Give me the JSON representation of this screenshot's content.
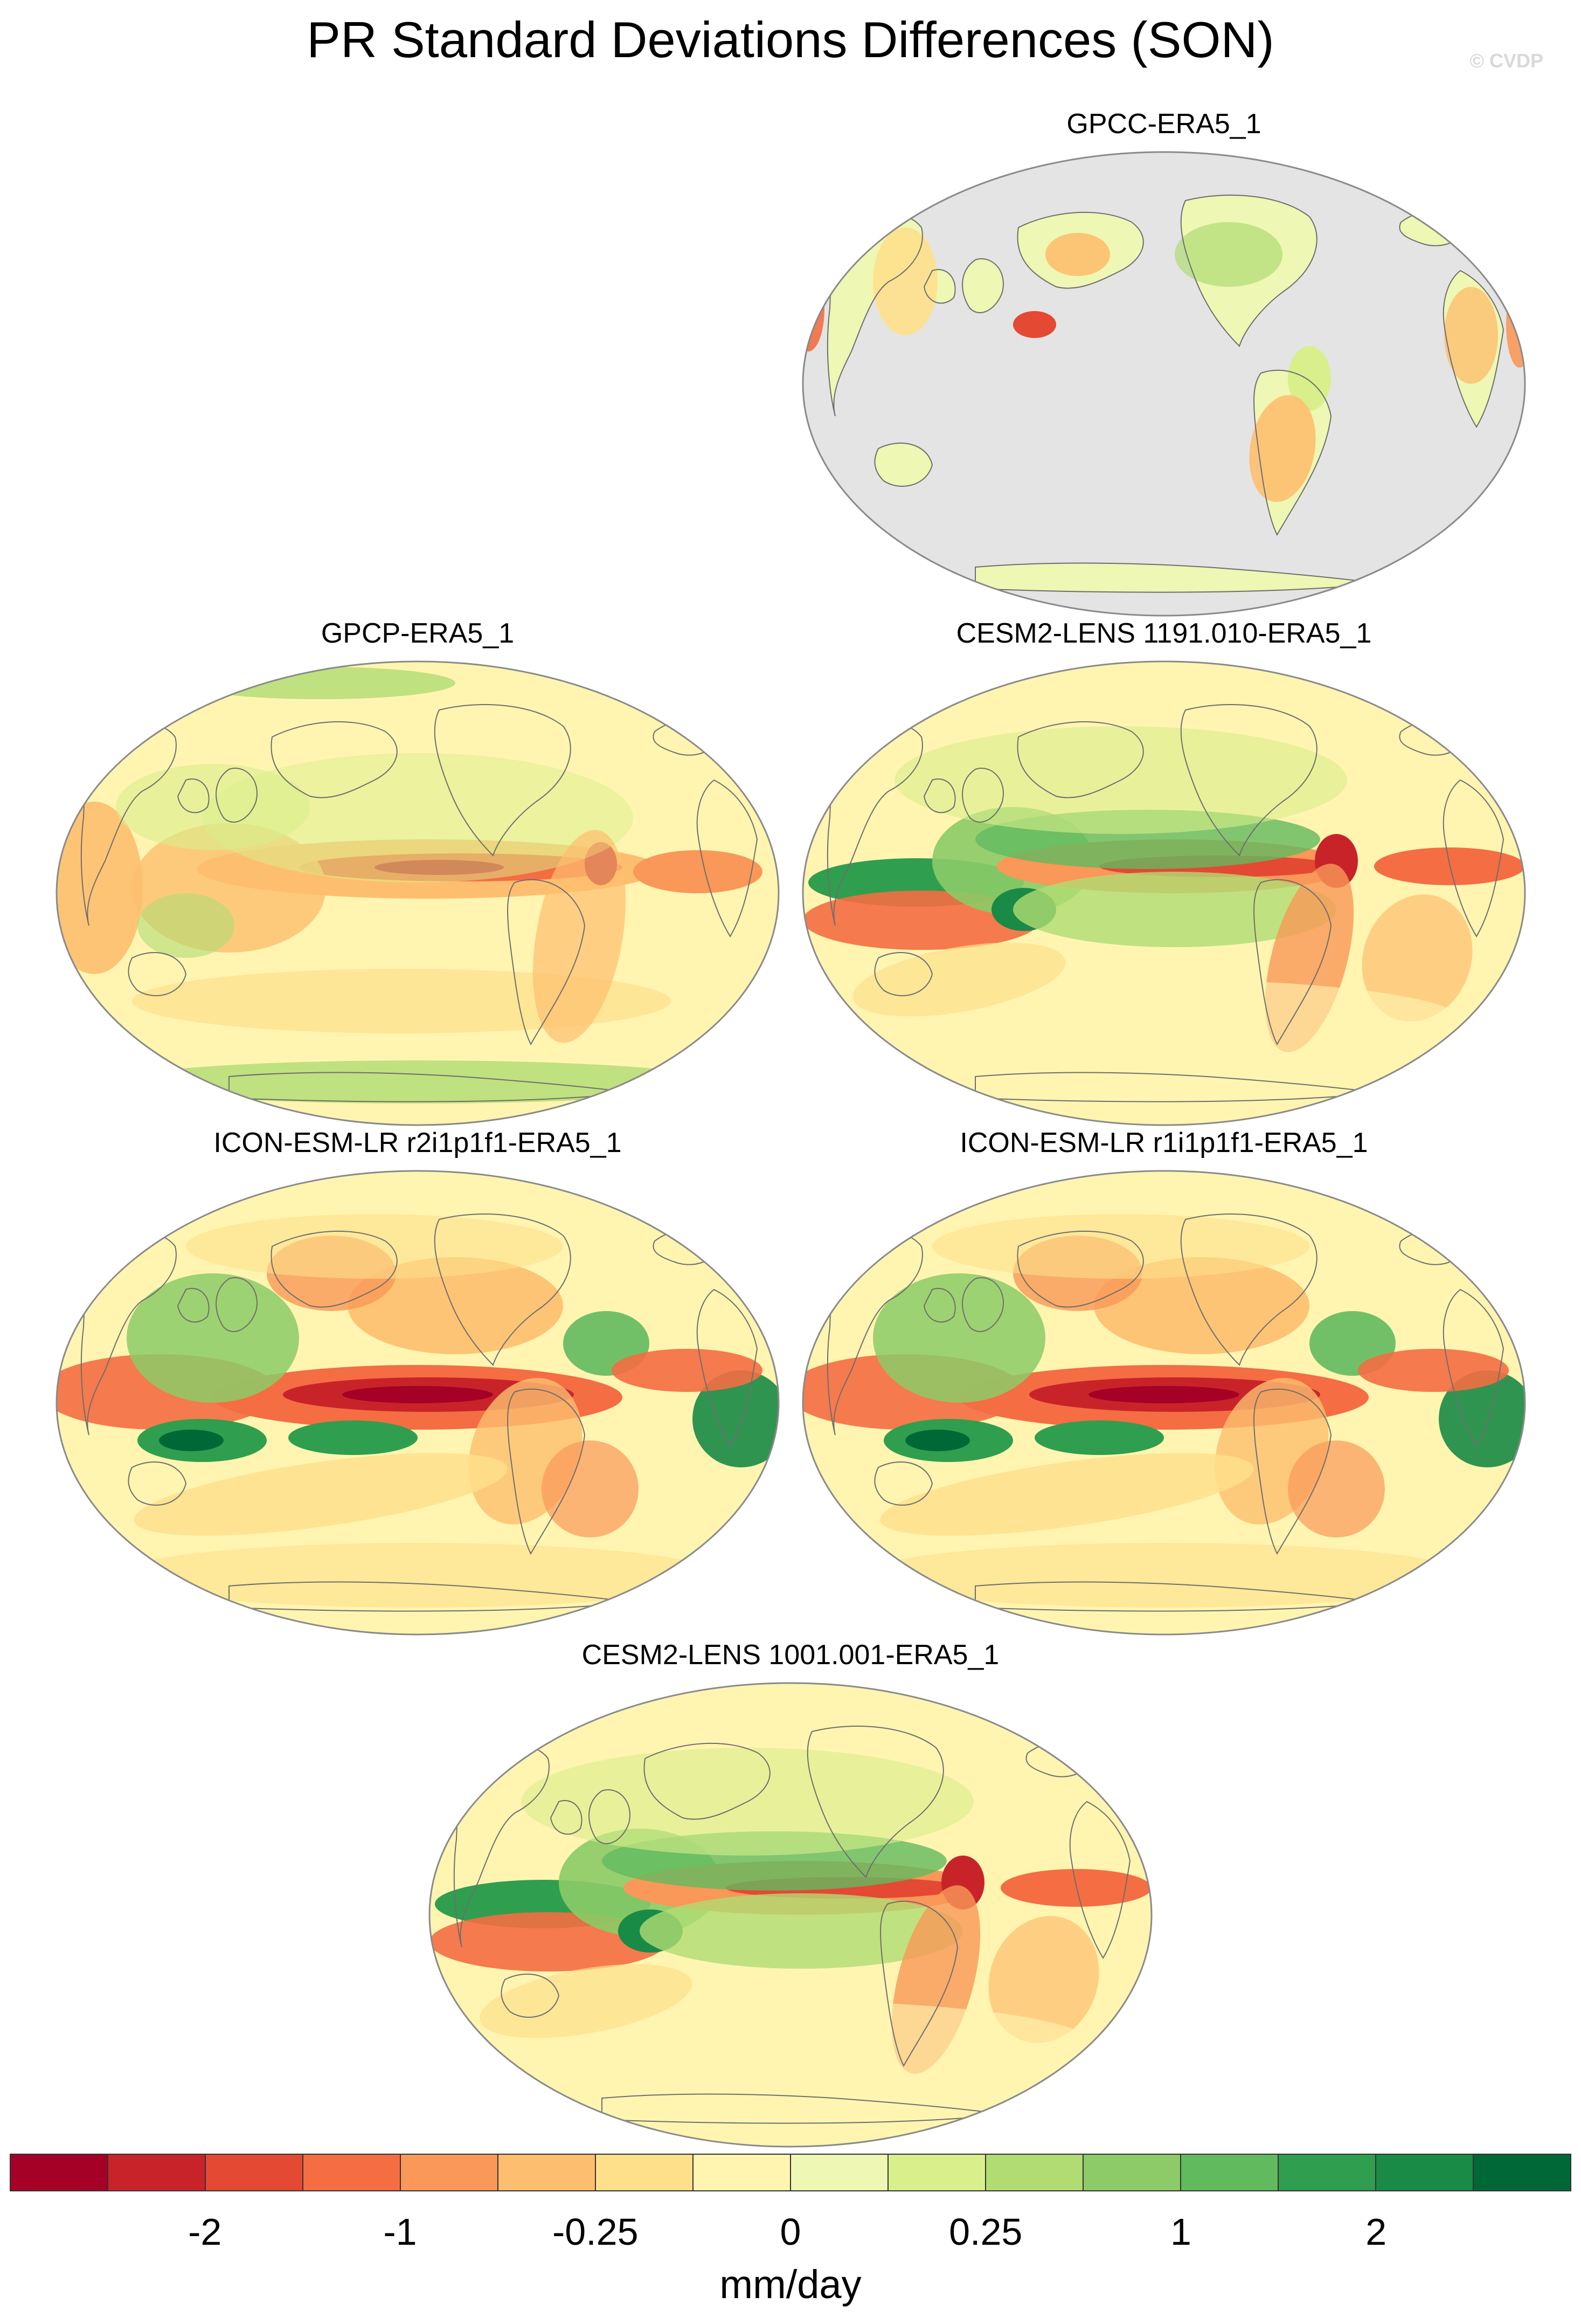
{
  "title": "PR Standard Deviations Differences (SON)",
  "credit": "© CVDP",
  "panels": [
    {
      "id": "gpcc",
      "title": "GPCC-ERA5_1",
      "style": "land-only"
    },
    {
      "id": "gpcp",
      "title": "GPCP-ERA5_1",
      "style": "gpcp"
    },
    {
      "id": "cesm1191",
      "title": "CESM2-LENS 1191.010-ERA5_1",
      "style": "cesm"
    },
    {
      "id": "icon_r2",
      "title": "ICON-ESM-LR r2i1p1f1-ERA5_1",
      "style": "icon"
    },
    {
      "id": "icon_r1",
      "title": "ICON-ESM-LR r1i1p1f1-ERA5_1",
      "style": "icon"
    },
    {
      "id": "cesm1001",
      "title": "CESM2-LENS 1001.001-ERA5_1",
      "style": "cesm"
    }
  ],
  "colorbar": {
    "units": "mm/day",
    "colors": [
      "#a50026",
      "#c9232a",
      "#e34933",
      "#f46d43",
      "#f99858",
      "#fdbf6f",
      "#fee08b",
      "#fff5b1",
      "#eef7b3",
      "#d9ef8b",
      "#b0dc73",
      "#8ccb67",
      "#62ba5f",
      "#2f9e4f",
      "#1a8a47",
      "#006837"
    ],
    "labels": [
      {
        "text": "-2",
        "boundary": 2
      },
      {
        "text": "-1",
        "boundary": 4
      },
      {
        "text": "-0.25",
        "boundary": 6
      },
      {
        "text": "0",
        "boundary": 8
      },
      {
        "text": "0.25",
        "boundary": 10
      },
      {
        "text": "1",
        "boundary": 12
      },
      {
        "text": "2",
        "boundary": 14
      }
    ]
  }
}
